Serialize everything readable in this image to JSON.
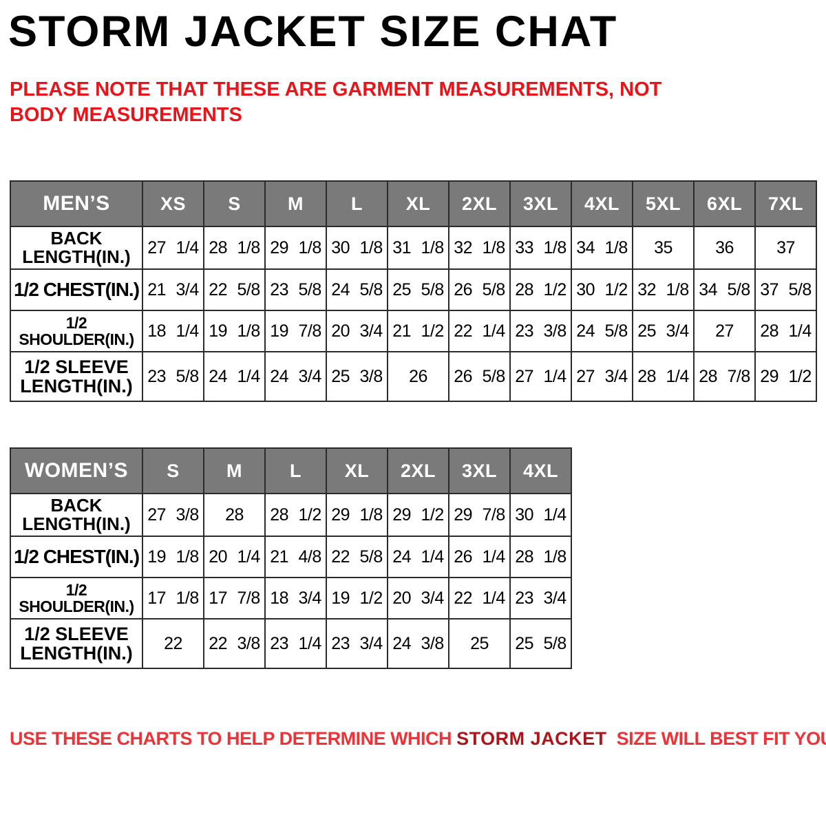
{
  "title": "STORM JACKET SIZE CHAT",
  "note": "PLEASE NOTE THAT THESE ARE GARMENT MEASUREMENTS, NOT BODY MEASUREMENTS",
  "footer": {
    "prefix": "USE THESE CHARTS TO HELP DETERMINE WHICH ",
    "highlight": "STORM JACKET",
    "suffix": "  SIZE WILL BEST FIT YOU."
  },
  "colors": {
    "header_bg": "#7a7a7a",
    "header_text": "#ffffff",
    "note_red": "#e8141a",
    "footer_red": "#ee3338",
    "footer_highlight_red": "#ae151b",
    "grid_border": "#2b2b2b"
  },
  "tables": [
    {
      "id": "mens",
      "corner_label": "MEN’S",
      "sizes": [
        "XS",
        "S",
        "M",
        "L",
        "XL",
        "2XL",
        "3XL",
        "4XL",
        "5XL",
        "6XL",
        "7XL"
      ],
      "rows": [
        {
          "label": "BACK\nLENGTH(IN.)",
          "values": [
            "27 1/4",
            "28 1/8",
            "29 1/8",
            "30 1/8",
            "31 1/8",
            "32 1/8",
            "33 1/8",
            "34 1/8",
            "35",
            "36",
            "37"
          ]
        },
        {
          "label": "1/2 CHEST(IN.)",
          "values": [
            "21 3/4",
            "22 5/8",
            "23 5/8",
            "24 5/8",
            "25 5/8",
            "26 5/8",
            "28 1/2",
            "30 1/2",
            "32 1/8",
            "34 5/8",
            "37 5/8"
          ]
        },
        {
          "label": "1/2 SHOULDER(IN.)",
          "values": [
            "18 1/4",
            "19 1/8",
            "19 7/8",
            "20 3/4",
            "21 1/2",
            "22 1/4",
            "23 3/8",
            "24 5/8",
            "25 3/4",
            "27",
            "28 1/4"
          ]
        },
        {
          "label": "1/2 SLEEVE\nLENGTH(IN.)",
          "values": [
            "23 5/8",
            "24 1/4",
            "24 3/4",
            "25 3/8",
            "26",
            "26 5/8",
            "27 1/4",
            "27 3/4",
            "28 1/4",
            "28 7/8",
            "29 1/2"
          ]
        }
      ]
    },
    {
      "id": "womens",
      "corner_label": "WOMEN’S",
      "sizes": [
        "S",
        "M",
        "L",
        "XL",
        "2XL",
        "3XL",
        "4XL"
      ],
      "rows": [
        {
          "label": "BACK\nLENGTH(IN.)",
          "values": [
            "27 3/8",
            "28",
            "28 1/2",
            "29 1/8",
            "29 1/2",
            "29 7/8",
            "30 1/4"
          ]
        },
        {
          "label": "1/2 CHEST(IN.)",
          "values": [
            "19 1/8",
            "20 1/4",
            "21 4/8",
            "22 5/8",
            "24 1/4",
            "26 1/4",
            "28 1/8"
          ]
        },
        {
          "label": "1/2 SHOULDER(IN.)",
          "values": [
            "17 1/8",
            "17 7/8",
            "18 3/4",
            "19 1/2",
            "20 3/4",
            "22 1/4",
            "23 3/4"
          ]
        },
        {
          "label": "1/2 SLEEVE\nLENGTH(IN.)",
          "values": [
            "22",
            "22 3/8",
            "23 1/4",
            "23 3/4",
            "24 3/8",
            "25",
            "25 5/8"
          ]
        }
      ]
    }
  ],
  "layout": {
    "label_col_width": 192,
    "size_col_width": 89
  }
}
